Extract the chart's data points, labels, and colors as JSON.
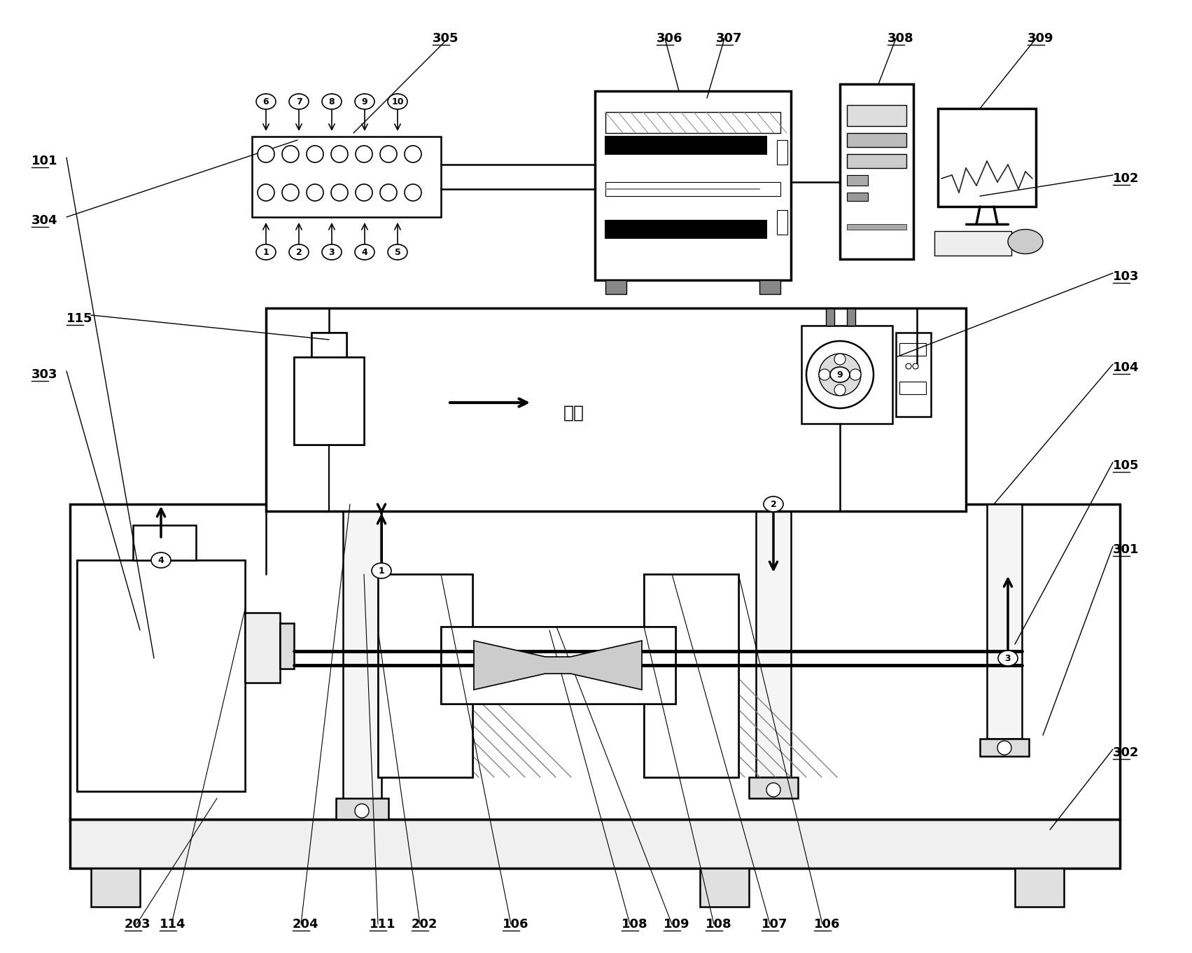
{
  "bg_color": "#ffffff",
  "flow_text": "流向",
  "labels_top": [
    "305",
    "306",
    "307",
    "308",
    "309"
  ],
  "labels_left": [
    "101",
    "304",
    "115",
    "303"
  ],
  "labels_right": [
    "102",
    "103",
    "104",
    "105",
    "301",
    "302"
  ],
  "labels_bottom": [
    "203",
    "114",
    "204",
    "111",
    "202",
    "106",
    "108",
    "109",
    "108",
    "107",
    "106"
  ],
  "manifold_circles_top": [
    "6",
    "7",
    "8",
    "9",
    "10"
  ],
  "manifold_circles_bot": [
    "1",
    "2",
    "3",
    "4",
    "5"
  ],
  "pump_label": "9",
  "flow_conn_labels": [
    "1",
    "2",
    "3",
    "4"
  ]
}
